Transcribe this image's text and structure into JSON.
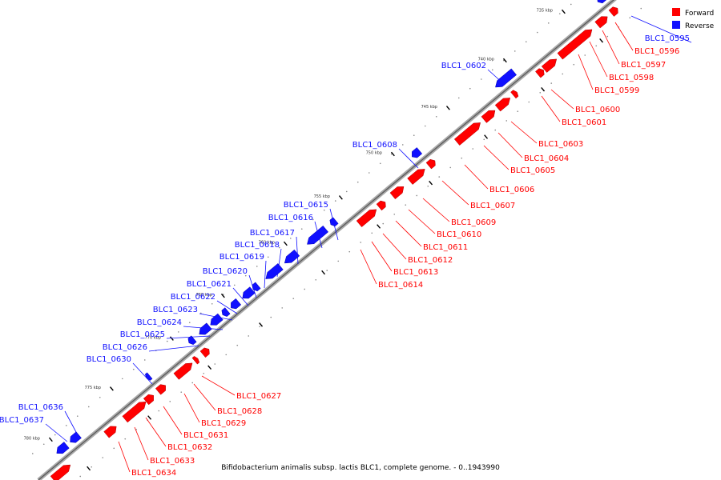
{
  "legend": {
    "forward_label": "Forward",
    "reverse_label": "Reverse",
    "forward_color": "#ff0000",
    "reverse_color": "#1010ff"
  },
  "footer": "Bifidobacterium animalis subsp. lactis BLC1, complete genome. - 0..1943990",
  "kbp_marks": [
    "735 kbp",
    "740 kbp",
    "745 kbp",
    "750 kbp",
    "755 kbp",
    "760 kbp",
    "765 kbp",
    "770 kbp",
    "775 kbp",
    "780 kbp"
  ],
  "forward_genes": [
    "BLC1_0596",
    "BLC1_0597",
    "BLC1_0598",
    "BLC1_0599",
    "BLC1_0600",
    "BLC1_0601",
    "BLC1_0603",
    "BLC1_0604",
    "BLC1_0605",
    "BLC1_0606",
    "BLC1_0607",
    "BLC1_0609",
    "BLC1_0610",
    "BLC1_0611",
    "BLC1_0612",
    "BLC1_0613",
    "BLC1_0614",
    "BLC1_0627",
    "BLC1_0628",
    "BLC1_0629",
    "BLC1_0631",
    "BLC1_0632",
    "BLC1_0633",
    "BLC1_0634"
  ],
  "reverse_genes": [
    "BLC1_0595",
    "BLC1_0602",
    "BLC1_0608",
    "BLC1_0615",
    "BLC1_0616",
    "BLC1_0617",
    "BLC1_0618",
    "BLC1_0619",
    "BLC1_0620",
    "BLC1_0621",
    "BLC1_0622",
    "BLC1_0623",
    "BLC1_0624",
    "BLC1_0625",
    "BLC1_0626",
    "BLC1_0630",
    "BLC1_0636",
    "BLC1_0637"
  ]
}
